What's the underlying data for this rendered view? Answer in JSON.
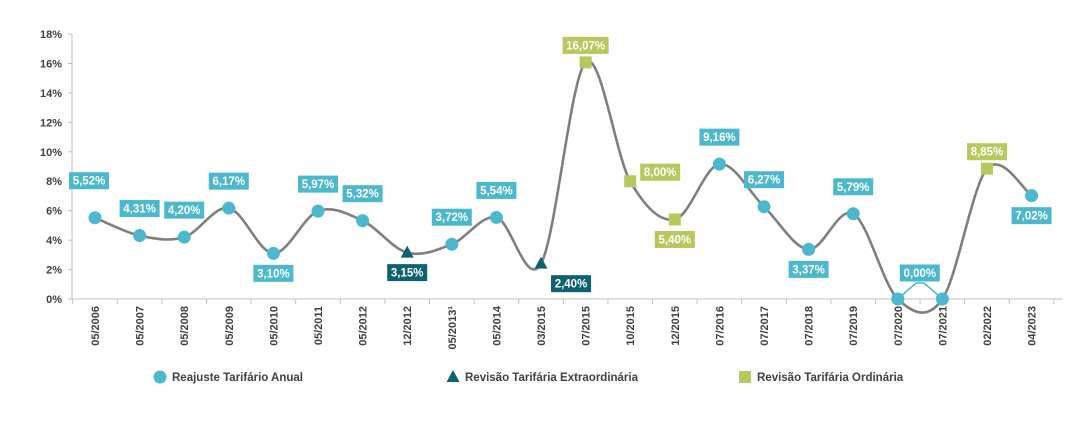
{
  "chart_data": {
    "type": "line",
    "categories": [
      "05/2006",
      "05/2007",
      "05/2008",
      "05/2009",
      "05/2010",
      "05/2011",
      "05/2012",
      "12/2012",
      "05/2013¹",
      "05/2014",
      "03/2015",
      "07/2015",
      "10/2015",
      "12/2015",
      "07/2016",
      "07/2017",
      "07/2018",
      "07/2019",
      "07/2020",
      "07/2021",
      "02/2022",
      "04/2023"
    ],
    "values": [
      5.52,
      4.31,
      4.2,
      6.17,
      3.1,
      5.97,
      5.32,
      3.15,
      3.72,
      5.54,
      2.4,
      16.07,
      8.0,
      5.4,
      9.16,
      6.27,
      3.37,
      5.79,
      0.0,
      0.0,
      8.85,
      7.02
    ],
    "labels": [
      "5,52%",
      "4,31%",
      "4,20%",
      "6,17%",
      "3,10%",
      "5,97%",
      "5,32%",
      "3,15%",
      "3,72%",
      "5,54%",
      "2,40%",
      "16,07%",
      "8,00%",
      "5,40%",
      "9,16%",
      "6,27%",
      "3,37%",
      "5,79%",
      "0,00%",
      "",
      "8,85%",
      "7,02%"
    ],
    "kinds": [
      "anual",
      "anual",
      "anual",
      "anual",
      "anual",
      "anual",
      "anual",
      "extra",
      "anual",
      "anual",
      "extra",
      "ordinaria",
      "ordinaria",
      "ordinaria",
      "anual",
      "anual",
      "anual",
      "anual",
      "anual",
      "anual",
      "ordinaria",
      "anual"
    ],
    "ylim": [
      0,
      18
    ],
    "yticks": [
      0,
      2,
      4,
      6,
      8,
      10,
      12,
      14,
      16,
      18
    ],
    "ytick_labels": [
      "0%",
      "2%",
      "4%",
      "6%",
      "8%",
      "10%",
      "12%",
      "14%",
      "16%",
      "18%"
    ],
    "grid": false,
    "legend_position": "bottom",
    "legend": [
      {
        "kind": "anual",
        "label": "Reajuste Tarifário Anual"
      },
      {
        "kind": "extra",
        "label": "Revisão Tarifária Extraordinária"
      },
      {
        "kind": "ordinaria",
        "label": "Revisão Tarifária Ordinária"
      }
    ],
    "colors": {
      "line": "#7f7f7f",
      "anual": "#4bb8cd",
      "extra": "#0e6171",
      "ordinaria": "#b5c95c",
      "axis": "#bfbfbf"
    }
  }
}
